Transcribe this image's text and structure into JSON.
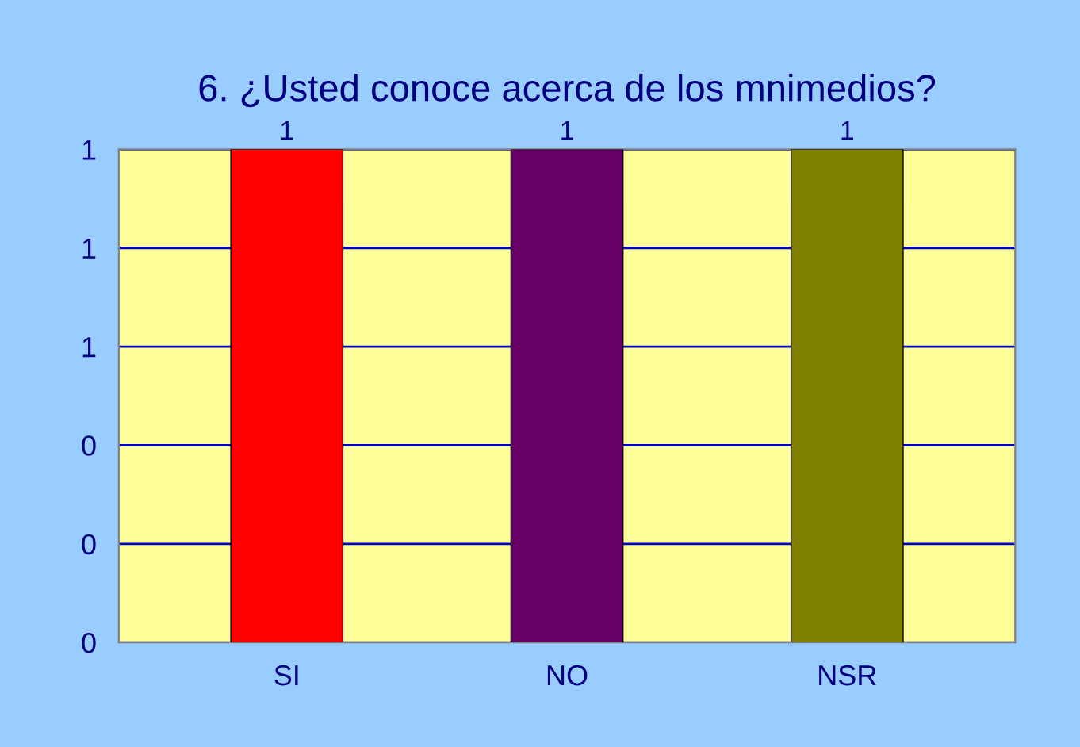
{
  "chart_data": {
    "type": "bar",
    "title": "6. ¿Usted conoce acerca de los mnimedios?",
    "categories": [
      "SI",
      "NO",
      "NSR"
    ],
    "values": [
      1,
      1,
      1
    ],
    "colors": [
      "#ff0000",
      "#660066",
      "#808000"
    ],
    "ylim": [
      0,
      1
    ],
    "yticks": [
      {
        "value": 0,
        "label": "0"
      },
      {
        "value": 0.2,
        "label": "0"
      },
      {
        "value": 0.4,
        "label": "0"
      },
      {
        "value": 0.6,
        "label": "1"
      },
      {
        "value": 0.8,
        "label": "1"
      },
      {
        "value": 1,
        "label": "1"
      }
    ],
    "grid": "y",
    "data_labels": true
  }
}
